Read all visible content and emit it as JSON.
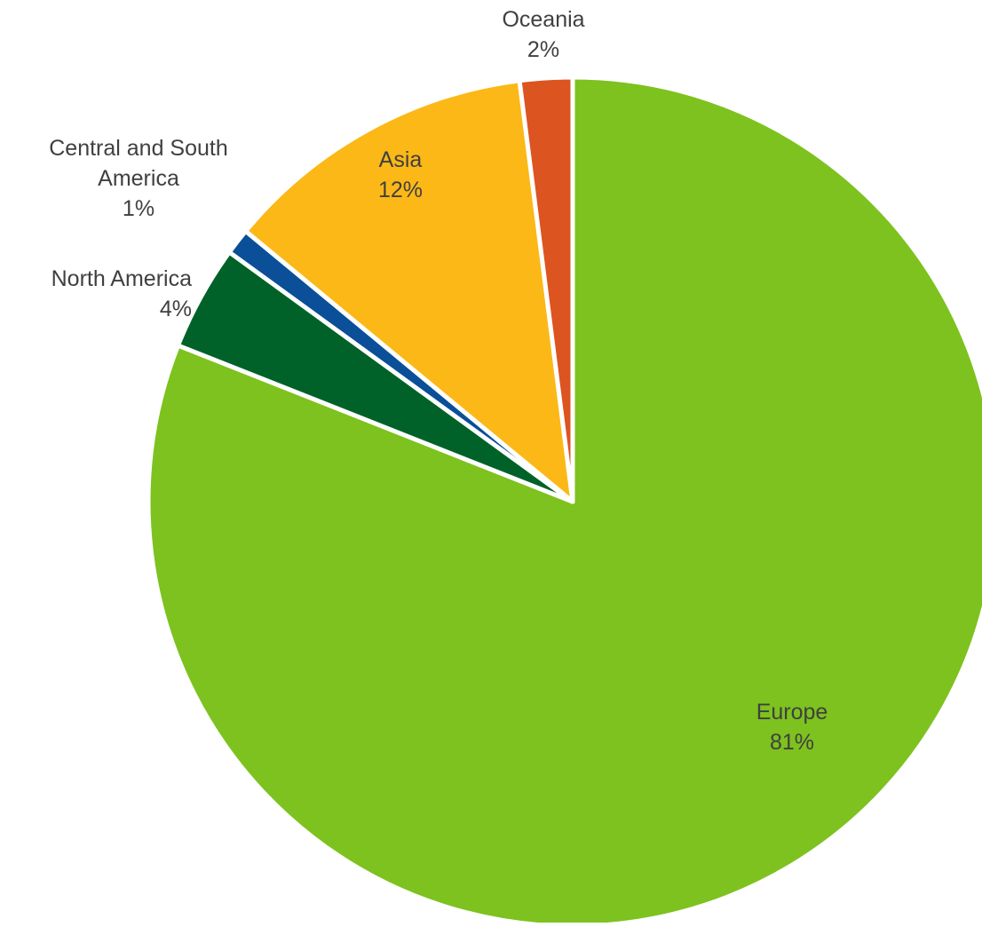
{
  "chart_data": {
    "type": "pie",
    "start_angle_deg": 0,
    "direction": "clockwise",
    "slices": [
      {
        "label": "Europe",
        "value": 81,
        "value_label": "81%",
        "color": "#7DC21E"
      },
      {
        "label": "North America",
        "value": 4,
        "value_label": "4%",
        "color": "#006228"
      },
      {
        "label": "Central and South America",
        "value": 1,
        "value_label": "1%",
        "color": "#0A4F98"
      },
      {
        "label": "Asia",
        "value": 12,
        "value_label": "12%",
        "color": "#FBB817"
      },
      {
        "label": "Oceania",
        "value": 2,
        "value_label": "2%",
        "color": "#DC5420"
      }
    ]
  }
}
